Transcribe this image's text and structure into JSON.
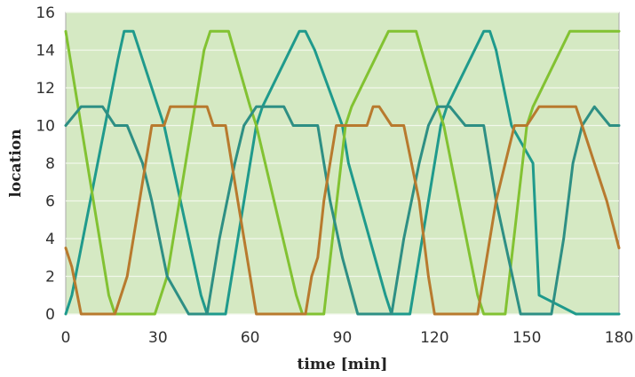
{
  "chart_data": {
    "type": "line",
    "title": "",
    "xlabel": "time [min]",
    "ylabel": "location",
    "xlim": [
      0,
      180
    ],
    "ylim": [
      0,
      16
    ],
    "xticks": [
      0,
      30,
      60,
      90,
      120,
      150,
      180
    ],
    "yticks": [
      0,
      2,
      4,
      6,
      8,
      10,
      12,
      14,
      16
    ],
    "grid": true,
    "legend": "none",
    "colors": {
      "plot_background": "#d5e9c3",
      "grid": "#f2f8ea",
      "frame": "#a9a9a9"
    },
    "series": [
      {
        "color": "#1f9a8c",
        "x": [
          0,
          2,
          17,
          19,
          22,
          30,
          32,
          44,
          46,
          48,
          52,
          62,
          64,
          76,
          78,
          81,
          90,
          92,
          104,
          106,
          108,
          112,
          122,
          124,
          136,
          138,
          140,
          145,
          152,
          154,
          166,
          167,
          180
        ],
        "y": [
          0,
          1,
          13.5,
          15,
          15,
          11,
          10,
          1,
          0,
          0,
          0,
          10,
          11,
          15,
          15,
          14,
          10,
          8,
          1,
          0,
          0,
          0,
          10,
          11,
          15,
          15,
          14,
          10,
          8,
          1,
          0,
          0,
          0
        ]
      },
      {
        "color": "#82c232",
        "x": [
          0,
          3,
          14,
          16,
          18,
          27,
          29,
          31,
          33,
          45,
          47,
          49,
          53,
          60,
          62,
          75,
          77,
          79,
          84,
          91,
          93,
          105,
          107,
          109,
          114,
          121,
          123,
          134,
          136,
          138,
          143,
          150,
          152,
          164,
          166,
          168,
          180
        ],
        "y": [
          15,
          12,
          1,
          0,
          0,
          0,
          0,
          1,
          2,
          14,
          15,
          15,
          15,
          11,
          10,
          1,
          0,
          0,
          0,
          10,
          11,
          15,
          15,
          15,
          15,
          11,
          10,
          1,
          0,
          0,
          0,
          10,
          11,
          15,
          15,
          15,
          15
        ]
      },
      {
        "color": "#2e8f84",
        "x": [
          0,
          5,
          9,
          12,
          16,
          20,
          25,
          28,
          33,
          40,
          42,
          44,
          46,
          50,
          55,
          58,
          62,
          66,
          71,
          74,
          78,
          82,
          86,
          90,
          95,
          102,
          104,
          106,
          110,
          115,
          118,
          121,
          125,
          130,
          133,
          136,
          140,
          144,
          148,
          151,
          158,
          162,
          165,
          168,
          172,
          177,
          180
        ],
        "y": [
          10,
          11,
          11,
          11,
          10,
          10,
          8,
          6,
          2,
          0,
          0,
          0,
          0,
          4,
          8,
          10,
          11,
          11,
          11,
          10,
          10,
          10,
          6,
          3,
          0,
          0,
          0,
          0,
          4,
          8,
          10,
          11,
          11,
          10,
          10,
          10,
          6,
          3,
          0,
          0,
          0,
          4,
          8,
          10,
          11,
          10,
          10
        ]
      },
      {
        "color": "#b87a2e",
        "x": [
          0,
          2,
          5,
          10,
          12,
          14,
          16,
          20,
          24,
          26,
          28,
          32,
          34,
          36,
          38,
          44,
          46,
          48,
          52,
          56,
          60,
          62,
          64,
          66,
          68,
          70,
          75,
          78,
          80,
          82,
          84,
          88,
          92,
          96,
          98,
          100,
          102,
          106,
          110,
          115,
          118,
          120,
          122,
          124,
          128,
          134,
          136,
          140,
          143,
          146,
          150,
          154,
          158,
          160,
          162,
          166,
          168,
          172,
          176,
          180
        ],
        "y": [
          3.5,
          2.5,
          0,
          0,
          0,
          0,
          0,
          2,
          6,
          8,
          10,
          10,
          11,
          11,
          11,
          11,
          11,
          10,
          10,
          6,
          2,
          0,
          0,
          0,
          0,
          0,
          0,
          0,
          2,
          3,
          6,
          10,
          10,
          10,
          10,
          11,
          11,
          10,
          10,
          6,
          2,
          0,
          0,
          0,
          0,
          0,
          2,
          6,
          8,
          10,
          10,
          11,
          11,
          11,
          11,
          11,
          10,
          8,
          6,
          3.5
        ]
      }
    ]
  }
}
